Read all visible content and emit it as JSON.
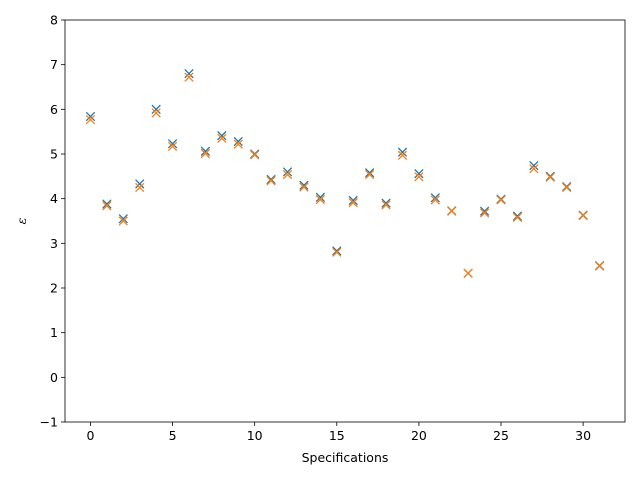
{
  "chart_data": {
    "type": "scatter",
    "title": "",
    "xlabel": "Specifications",
    "ylabel": "ε",
    "xlim": [
      -1.55,
      32.55
    ],
    "ylim": [
      -1,
      8
    ],
    "xticks": [
      0,
      5,
      10,
      15,
      20,
      25,
      30
    ],
    "yticks": [
      -1,
      0,
      1,
      2,
      3,
      4,
      5,
      6,
      7,
      8
    ],
    "grid": false,
    "legend": "none",
    "marker": "x",
    "series": [
      {
        "color": "#1f77b4",
        "x": [
          0,
          1,
          2,
          3,
          4,
          5,
          6,
          7,
          8,
          9,
          10,
          11,
          12,
          13,
          14,
          15,
          16,
          17,
          18,
          19,
          20,
          21,
          22,
          23,
          24,
          25,
          26,
          27,
          28,
          29,
          30,
          31
        ],
        "y": [
          5.84,
          3.88,
          3.55,
          4.33,
          6.0,
          5.23,
          6.8,
          5.06,
          5.41,
          5.28,
          5.0,
          4.43,
          4.6,
          4.3,
          4.03,
          2.83,
          3.96,
          4.58,
          3.9,
          5.04,
          4.56,
          4.02,
          3.73,
          2.33,
          3.72,
          3.99,
          3.61,
          4.74,
          4.5,
          4.27,
          3.63,
          2.5
        ]
      },
      {
        "color": "#ff7f0e",
        "x": [
          0,
          1,
          2,
          3,
          4,
          5,
          6,
          7,
          8,
          9,
          10,
          11,
          12,
          13,
          14,
          15,
          16,
          17,
          18,
          19,
          20,
          21,
          22,
          23,
          24,
          25,
          26,
          27,
          28,
          29,
          30,
          31
        ],
        "y": [
          5.77,
          3.84,
          3.5,
          4.25,
          5.92,
          5.17,
          6.72,
          5.01,
          5.35,
          5.22,
          4.98,
          4.4,
          4.54,
          4.26,
          3.98,
          2.8,
          3.91,
          4.54,
          3.86,
          4.97,
          4.49,
          3.97,
          3.72,
          2.33,
          3.68,
          3.97,
          3.58,
          4.67,
          4.48,
          4.25,
          3.62,
          2.49
        ]
      }
    ]
  }
}
